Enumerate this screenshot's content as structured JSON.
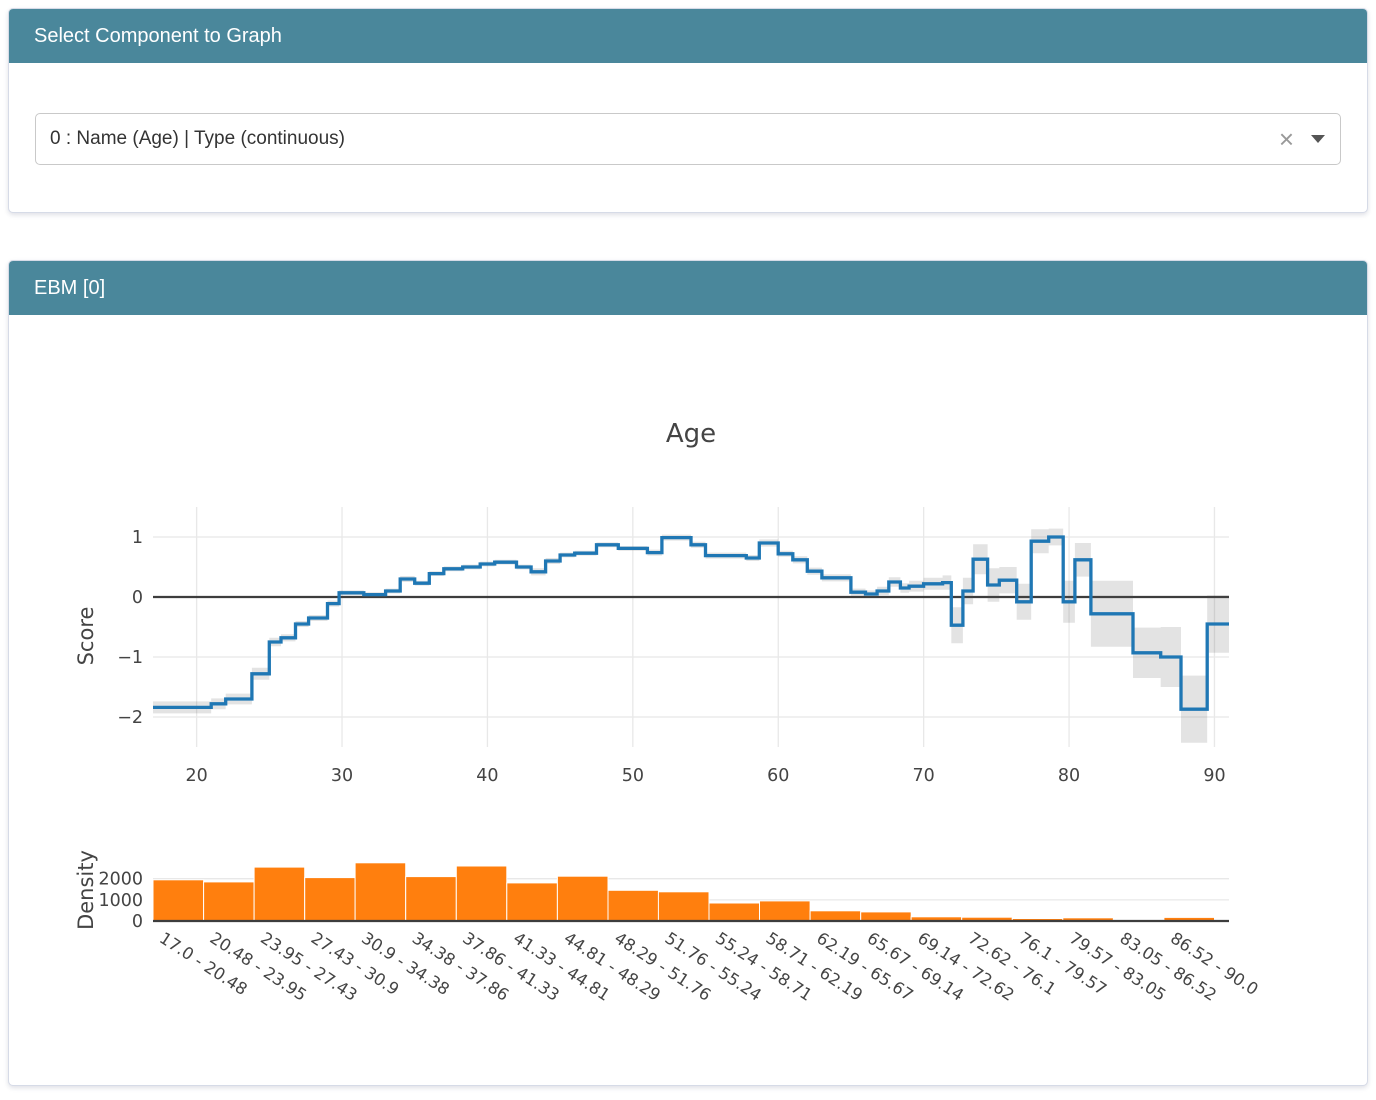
{
  "select_panel": {
    "title": "Select Component to Graph",
    "dropdown": {
      "value": "0 : Name (Age) | Type (continuous)",
      "clear_icon": "×"
    }
  },
  "ebm_panel": {
    "title": "EBM [0]"
  },
  "chart_data": [
    {
      "type": "line",
      "title": "Age",
      "xlabel": "",
      "ylabel": "Score",
      "line_shape": "hv-step",
      "x_range": [
        17,
        91
      ],
      "y_range": [
        -2.5,
        1.5
      ],
      "x_ticks": [
        20,
        30,
        40,
        50,
        60,
        70,
        80,
        90
      ],
      "y_ticks": [
        1,
        0,
        -1,
        -2
      ],
      "grid": true,
      "zero_line": true,
      "line_color": "#1f77b4",
      "band_color": "rgba(80,80,80,0.16)",
      "steps_format": "[x_start, score, error_halfwidth]",
      "x_end": 91,
      "steps": [
        [
          17.0,
          -1.84,
          0.1
        ],
        [
          21.0,
          -1.78,
          0.09
        ],
        [
          22.0,
          -1.7,
          0.09
        ],
        [
          23.8,
          -1.28,
          0.1
        ],
        [
          25.0,
          -0.75,
          0.07
        ],
        [
          25.8,
          -0.68,
          0.06
        ],
        [
          26.8,
          -0.45,
          0.05
        ],
        [
          27.7,
          -0.35,
          0.05
        ],
        [
          29.0,
          -0.11,
          0.05
        ],
        [
          29.8,
          0.07,
          0.04
        ],
        [
          31.5,
          0.04,
          0.04
        ],
        [
          33.0,
          0.1,
          0.04
        ],
        [
          34.0,
          0.3,
          0.05
        ],
        [
          35.0,
          0.23,
          0.04
        ],
        [
          36.0,
          0.39,
          0.04
        ],
        [
          37.0,
          0.47,
          0.04
        ],
        [
          38.3,
          0.5,
          0.04
        ],
        [
          39.5,
          0.55,
          0.04
        ],
        [
          40.5,
          0.58,
          0.04
        ],
        [
          42.0,
          0.5,
          0.04
        ],
        [
          43.0,
          0.42,
          0.06
        ],
        [
          44.0,
          0.6,
          0.05
        ],
        [
          45.0,
          0.7,
          0.04
        ],
        [
          46.0,
          0.73,
          0.04
        ],
        [
          47.5,
          0.87,
          0.04
        ],
        [
          49.0,
          0.81,
          0.04
        ],
        [
          51.0,
          0.74,
          0.05
        ],
        [
          52.0,
          0.99,
          0.05
        ],
        [
          54.0,
          0.87,
          0.05
        ],
        [
          55.0,
          0.69,
          0.05
        ],
        [
          57.8,
          0.65,
          0.05
        ],
        [
          58.7,
          0.9,
          0.06
        ],
        [
          60.0,
          0.72,
          0.05
        ],
        [
          61.0,
          0.62,
          0.06
        ],
        [
          62.0,
          0.43,
          0.06
        ],
        [
          63.0,
          0.32,
          0.06
        ],
        [
          65.0,
          0.08,
          0.06
        ],
        [
          66.0,
          0.05,
          0.06
        ],
        [
          66.8,
          0.1,
          0.07
        ],
        [
          67.6,
          0.25,
          0.08
        ],
        [
          68.4,
          0.15,
          0.08
        ],
        [
          69.0,
          0.18,
          0.09
        ],
        [
          70.0,
          0.22,
          0.1
        ],
        [
          71.3,
          0.24,
          0.12
        ],
        [
          71.9,
          -0.47,
          0.3
        ],
        [
          72.7,
          0.1,
          0.22
        ],
        [
          73.4,
          0.63,
          0.25
        ],
        [
          74.4,
          0.2,
          0.28
        ],
        [
          75.2,
          0.28,
          0.22
        ],
        [
          76.4,
          -0.08,
          0.3
        ],
        [
          77.4,
          0.93,
          0.2
        ],
        [
          78.6,
          1.0,
          0.14
        ],
        [
          79.6,
          -0.08,
          0.35
        ],
        [
          80.4,
          0.62,
          0.28
        ],
        [
          81.5,
          -0.28,
          0.55
        ],
        [
          84.4,
          -0.93,
          0.42
        ],
        [
          86.3,
          -1.0,
          0.5
        ],
        [
          87.7,
          -1.87,
          0.56
        ],
        [
          89.5,
          -0.45,
          0.48
        ]
      ]
    },
    {
      "type": "bar",
      "ylabel": "Density",
      "bar_color": "#ff7f0e",
      "y_ticks": [
        0,
        1000,
        2000
      ],
      "ylim": [
        0,
        3000
      ],
      "grid": true,
      "bin_edges": [
        17.0,
        20.48,
        23.95,
        27.43,
        30.9,
        34.38,
        37.86,
        41.33,
        44.81,
        48.29,
        51.76,
        55.24,
        58.71,
        62.19,
        65.67,
        69.14,
        72.62,
        76.1,
        79.57,
        83.05,
        86.52,
        90.0
      ],
      "categories": [
        "17.0 - 20.48",
        "20.48 - 23.95",
        "23.95 - 27.43",
        "27.43 - 30.9",
        "30.9 - 34.38",
        "34.38 - 37.86",
        "37.86 - 41.33",
        "41.33 - 44.81",
        "44.81 - 48.29",
        "48.29 - 51.76",
        "51.76 - 55.24",
        "55.24 - 58.71",
        "58.71 - 62.19",
        "62.19 - 65.67",
        "65.67 - 69.14",
        "69.14 - 72.62",
        "72.62 - 76.1",
        "76.1 - 79.57",
        "79.57 - 83.05",
        "83.05 - 86.52",
        "86.52 - 90.0"
      ],
      "values": [
        1950,
        1850,
        2550,
        2050,
        2750,
        2100,
        2600,
        1800,
        2120,
        1450,
        1380,
        850,
        950,
        480,
        430,
        200,
        180,
        120,
        150,
        70,
        170
      ]
    }
  ]
}
